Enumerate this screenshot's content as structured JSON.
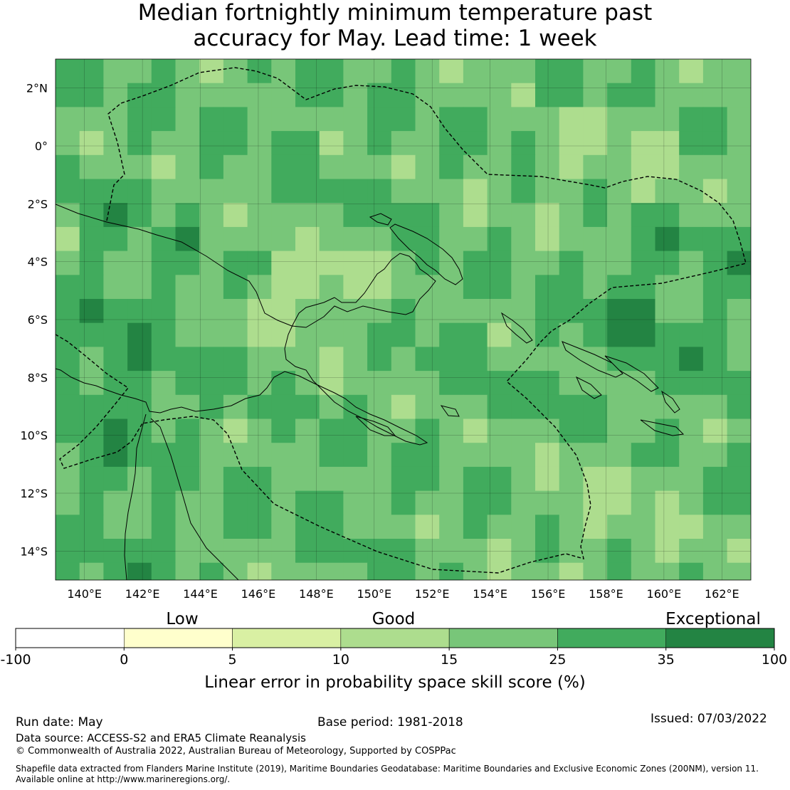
{
  "title_line1": "Median fortnightly minimum temperature past",
  "title_line2": "accuracy for May. Lead time: 1 week",
  "map": {
    "lon_range": [
      139,
      163
    ],
    "lat_range": [
      -15,
      3
    ],
    "lon_ticks": [
      "140°E",
      "142°E",
      "144°E",
      "146°E",
      "148°E",
      "150°E",
      "152°E",
      "154°E",
      "156°E",
      "158°E",
      "160°E",
      "162°E"
    ],
    "lat_ticks": [
      "2°N",
      "0°",
      "2°S",
      "4°S",
      "6°S",
      "8°S",
      "10°S",
      "12°S",
      "14°S"
    ]
  },
  "colorbar": {
    "category_labels": [
      "Low",
      "Good",
      "Exceptional"
    ],
    "tick_labels": [
      "-100",
      "0",
      "5",
      "10",
      "15",
      "25",
      "35",
      "100"
    ],
    "colors": [
      "#ffffff",
      "#ffffcc",
      "#d9f0a3",
      "#addd8e",
      "#78c679",
      "#41ab5d",
      "#238443"
    ],
    "axis_label": "Linear error in probability space skill score (%)"
  },
  "footer": {
    "run_date": "Run date: May",
    "base_period": "Base period: 1981-2018",
    "issued": "Issued: 07/03/2022",
    "data_source": "Data source: ACCESS-S2 and ERA5 Climate Reanalysis",
    "copyright": "© Commonwealth of Australia 2022, Australian Bureau of Meteorology, Supported by COSPPac",
    "shapefile_line1": "Shapefile data extracted from Flanders Marine Institute (2019), Maritime Boundaries Geodatabase: Maritime Boundaries and Exclusive Economic Zones (200NM), version 11.",
    "shapefile_line2": "Available online at http://www.marineregions.org/."
  }
}
